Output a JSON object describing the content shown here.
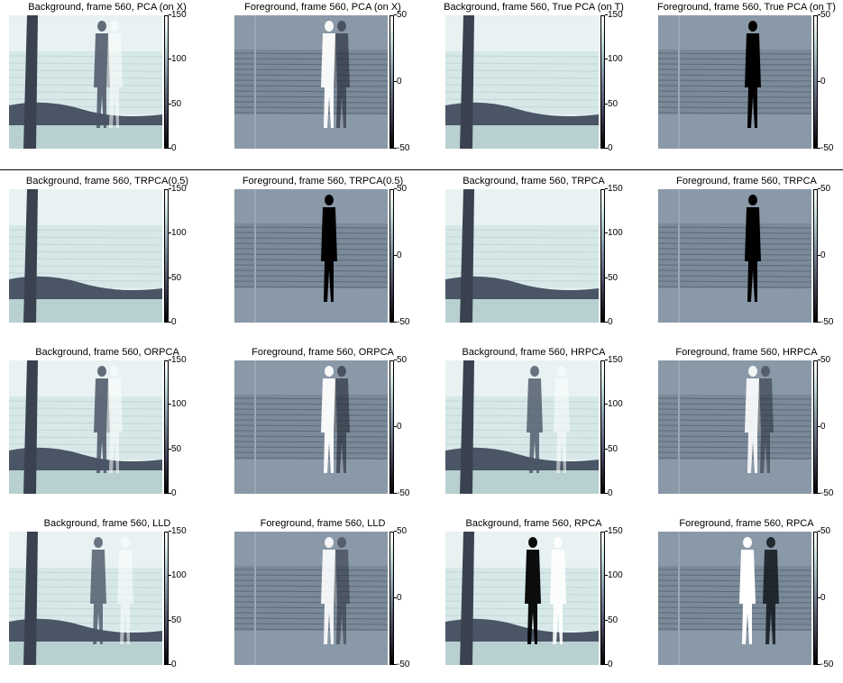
{
  "panels": [
    {
      "title": "Background, frame 560, PCA (on X)",
      "kind": "bg",
      "ghost": "strong",
      "ticks": [
        "150",
        "100",
        "50",
        "0"
      ]
    },
    {
      "title": "Foreground, frame 560, PCA (on X)",
      "kind": "fg",
      "ghost": "strong",
      "ticks": [
        "50",
        "0",
        "-50"
      ]
    },
    {
      "title": "Background, frame 560, True PCA (on T)",
      "kind": "bg",
      "ghost": "none",
      "ticks": [
        "150",
        "100",
        "50",
        "0"
      ]
    },
    {
      "title": "Foreground, frame 560, True PCA (on T)",
      "kind": "fg",
      "ghost": "none",
      "ticks": [
        "50",
        "0",
        "-50"
      ]
    },
    {
      "title": "Background, frame 560, TRPCA(0.5)",
      "kind": "bg",
      "ghost": "none",
      "ticks": [
        "150",
        "100",
        "50",
        "0"
      ]
    },
    {
      "title": "Foreground, frame 560, TRPCA(0.5)",
      "kind": "fg",
      "ghost": "none",
      "ticks": [
        "50",
        "0",
        "-50"
      ]
    },
    {
      "title": "Background, frame 560, TRPCA",
      "kind": "bg",
      "ghost": "none",
      "ticks": [
        "150",
        "100",
        "50",
        "0"
      ]
    },
    {
      "title": "Foreground, frame 560, TRPCA",
      "kind": "fg",
      "ghost": "none",
      "ticks": [
        "50",
        "0",
        "-50"
      ]
    },
    {
      "title": "Background, frame 560, ORPCA",
      "kind": "bg",
      "ghost": "strong",
      "ticks": [
        "150",
        "100",
        "50",
        "0"
      ]
    },
    {
      "title": "Foreground, frame 560, ORPCA",
      "kind": "fg",
      "ghost": "strong",
      "ticks": [
        "50",
        "0",
        "-50"
      ]
    },
    {
      "title": "Background, frame 560, HRPCA",
      "kind": "bg",
      "ghost": "medium",
      "ticks": [
        "150",
        "100",
        "50",
        "0"
      ]
    },
    {
      "title": "Foreground, frame 560, HRPCA",
      "kind": "fg",
      "ghost": "medium",
      "ticks": [
        "50",
        "0",
        "-50"
      ]
    },
    {
      "title": "Background, frame 560, LLD",
      "kind": "bg",
      "ghost": "medium",
      "ticks": [
        "150",
        "100",
        "50",
        "0"
      ]
    },
    {
      "title": "Foreground, frame 560, LLD",
      "kind": "fg",
      "ghost": "medium",
      "ticks": [
        "50",
        "0",
        "-50"
      ]
    },
    {
      "title": "Background, frame 560, RPCA",
      "kind": "bg",
      "ghost": "heavy",
      "ticks": [
        "150",
        "100",
        "50",
        "0"
      ]
    },
    {
      "title": "Foreground, frame 560, RPCA",
      "kind": "fg",
      "ghost": "heavy",
      "ticks": [
        "50",
        "0",
        "-50"
      ]
    }
  ],
  "colors": {
    "sky": "#e8f2f2",
    "sea": "#d6e8e8",
    "shore": "#4a5566",
    "sand": "#b8d0d0",
    "trunk": "#3a4250",
    "fg_base": "#8a99a8",
    "person_dark": "#000000",
    "person_light": "#ffffff"
  }
}
